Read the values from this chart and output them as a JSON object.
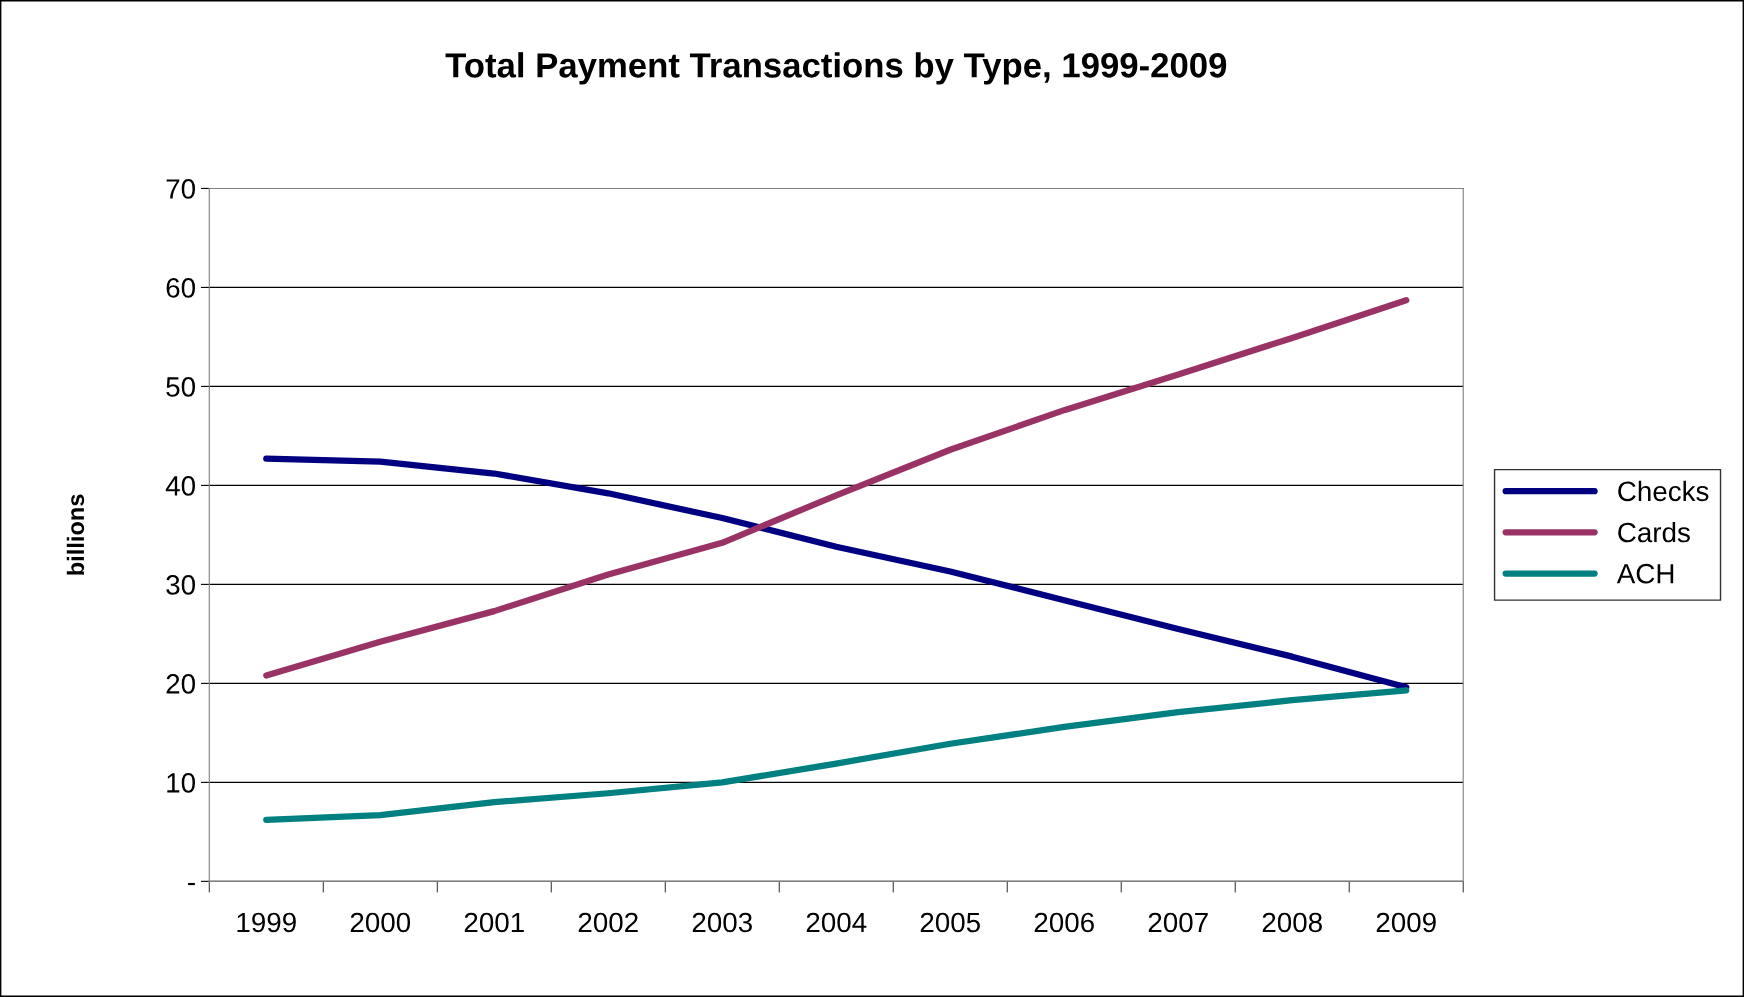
{
  "chart_data": {
    "type": "line",
    "title": "Total Payment Transactions by Type, 1999-2009",
    "ylabel": "billions",
    "categories": [
      "1999",
      "2000",
      "2001",
      "2002",
      "2003",
      "2004",
      "2005",
      "2006",
      "2007",
      "2008",
      "2009"
    ],
    "series": [
      {
        "name": "Checks",
        "color": "#000080",
        "values": [
          42.7,
          42.4,
          41.2,
          39.2,
          36.7,
          33.8,
          31.3,
          28.4,
          25.5,
          22.7,
          19.6
        ]
      },
      {
        "name": "Cards",
        "color": "#993366",
        "values": [
          20.8,
          24.2,
          27.3,
          31.0,
          34.2,
          39.0,
          43.6,
          47.6,
          51.2,
          54.9,
          58.7
        ]
      },
      {
        "name": "ACH",
        "color": "#008080",
        "values": [
          6.2,
          6.7,
          8.0,
          8.9,
          10.0,
          11.9,
          13.9,
          15.6,
          17.1,
          18.3,
          19.3
        ]
      }
    ],
    "ylim": [
      0,
      70
    ],
    "yticks": [
      {
        "value": 0,
        "label": "-"
      },
      10,
      20,
      30,
      40,
      50,
      60,
      70
    ],
    "grid": "y",
    "legend": "right",
    "marker": "none",
    "line_style": "solid"
  }
}
